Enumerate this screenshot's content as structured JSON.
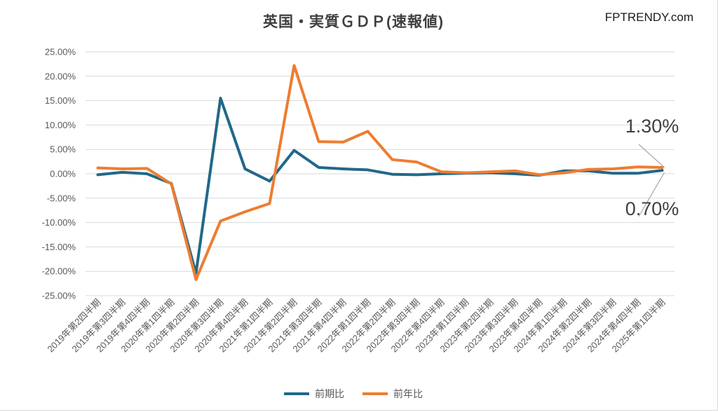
{
  "watermark": "FPTRENDY.com",
  "chart_data": {
    "type": "line",
    "title": "英国・実質ＧＤＰ(速報値)",
    "xlabel": "",
    "ylabel": "",
    "ylim": [
      -25,
      25
    ],
    "y_tick_step": 5,
    "y_tick_labels": [
      "25.00%",
      "20.00%",
      "15.00%",
      "10.00%",
      "5.00%",
      "0.00%",
      "-5.00%",
      "-10.00%",
      "-15.00%",
      "-20.00%",
      "-25.00%"
    ],
    "grid": true,
    "grid_color": "#d9d9d9",
    "axis_text_color": "#595959",
    "legend_position": "bottom",
    "categories": [
      "2019年第2四半期",
      "2019年第3四半期",
      "2019年第4四半期",
      "2020年第1四半期",
      "2020年第2四半期",
      "2020年第3四半期",
      "2020年第4四半期",
      "2021年第1四半期",
      "2021年第2四半期",
      "2021年第3四半期",
      "2021年第4四半期",
      "2022年第1四半期",
      "2022年第2四半期",
      "2022年第3四半期",
      "2022年第4四半期",
      "2023年第1四半期",
      "2023年第2四半期",
      "2023年第3四半期",
      "2023年第4四半期",
      "2024年第1四半期",
      "2024年第2四半期",
      "2024年第3四半期",
      "2024年第4四半期",
      "2025年第1四半期"
    ],
    "series": [
      {
        "name": "前期比",
        "color": "#21688a",
        "values": [
          -0.2,
          0.3,
          0.0,
          -2.0,
          -20.4,
          15.5,
          1.0,
          -1.5,
          4.8,
          1.3,
          1.0,
          0.8,
          -0.1,
          -0.2,
          0.0,
          0.1,
          0.2,
          0.0,
          -0.3,
          0.6,
          0.6,
          0.1,
          0.1,
          0.7
        ]
      },
      {
        "name": "前年比",
        "color": "#ed7d31",
        "values": [
          1.2,
          1.0,
          1.1,
          -2.1,
          -21.7,
          -9.7,
          -7.8,
          -6.1,
          22.2,
          6.6,
          6.5,
          8.7,
          2.9,
          2.4,
          0.4,
          0.2,
          0.4,
          0.6,
          -0.2,
          0.2,
          0.9,
          1.0,
          1.4,
          1.3
        ]
      }
    ],
    "annotations": [
      {
        "text": "1.30%",
        "series": "前年比",
        "point": "2025年第1四半期",
        "value": 1.3
      },
      {
        "text": "0.70%",
        "series": "前期比",
        "point": "2025年第1四半期",
        "value": 0.7
      }
    ],
    "leader_line_color": "#a6a6a6"
  }
}
